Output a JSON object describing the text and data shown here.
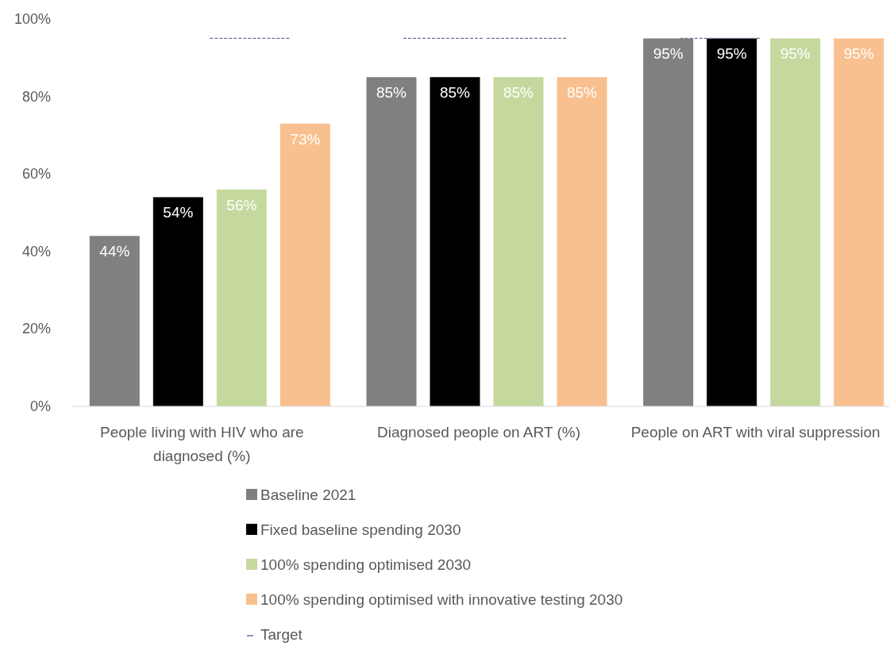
{
  "chart_data": {
    "type": "bar",
    "categories": [
      "People living with HIV who are diagnosed (%)",
      "Diagnosed people on ART (%)",
      "People on ART with viral suppression"
    ],
    "ylim": [
      0,
      100
    ],
    "yticks": [
      {
        "value": 0,
        "label": "0%"
      },
      {
        "value": 20,
        "label": "20%"
      },
      {
        "value": 40,
        "label": "40%"
      },
      {
        "value": 60,
        "label": "60%"
      },
      {
        "value": 80,
        "label": "80%"
      },
      {
        "value": 100,
        "label": "100%"
      }
    ],
    "grid": false,
    "legend": "bottom",
    "data_labels": true,
    "series": [
      {
        "name": "Baseline 2021",
        "color": "#808080",
        "values": [
          44,
          85,
          95
        ],
        "value_labels": [
          "44%",
          "85%",
          "95%"
        ]
      },
      {
        "name": "Fixed baseline spending 2030",
        "color": "#000000",
        "values": [
          54,
          85,
          95
        ],
        "value_labels": [
          "54%",
          "85%",
          "95%"
        ]
      },
      {
        "name": "100% spending optimised 2030",
        "color": "#c5d99f",
        "values": [
          56,
          85,
          95
        ],
        "value_labels": [
          "56%",
          "85%",
          "95%"
        ]
      },
      {
        "name": "100% spending optimised with innovative testing 2030",
        "color": "#f9c08f",
        "values": [
          73,
          85,
          95
        ],
        "value_labels": [
          "73%",
          "85%",
          "95%"
        ]
      },
      {
        "name": "Target",
        "type": "line",
        "color": "#7a6a9a",
        "line_style": "dashed",
        "values": [
          95,
          95,
          95
        ],
        "value_labels": [
          null,
          null,
          null
        ]
      }
    ]
  }
}
